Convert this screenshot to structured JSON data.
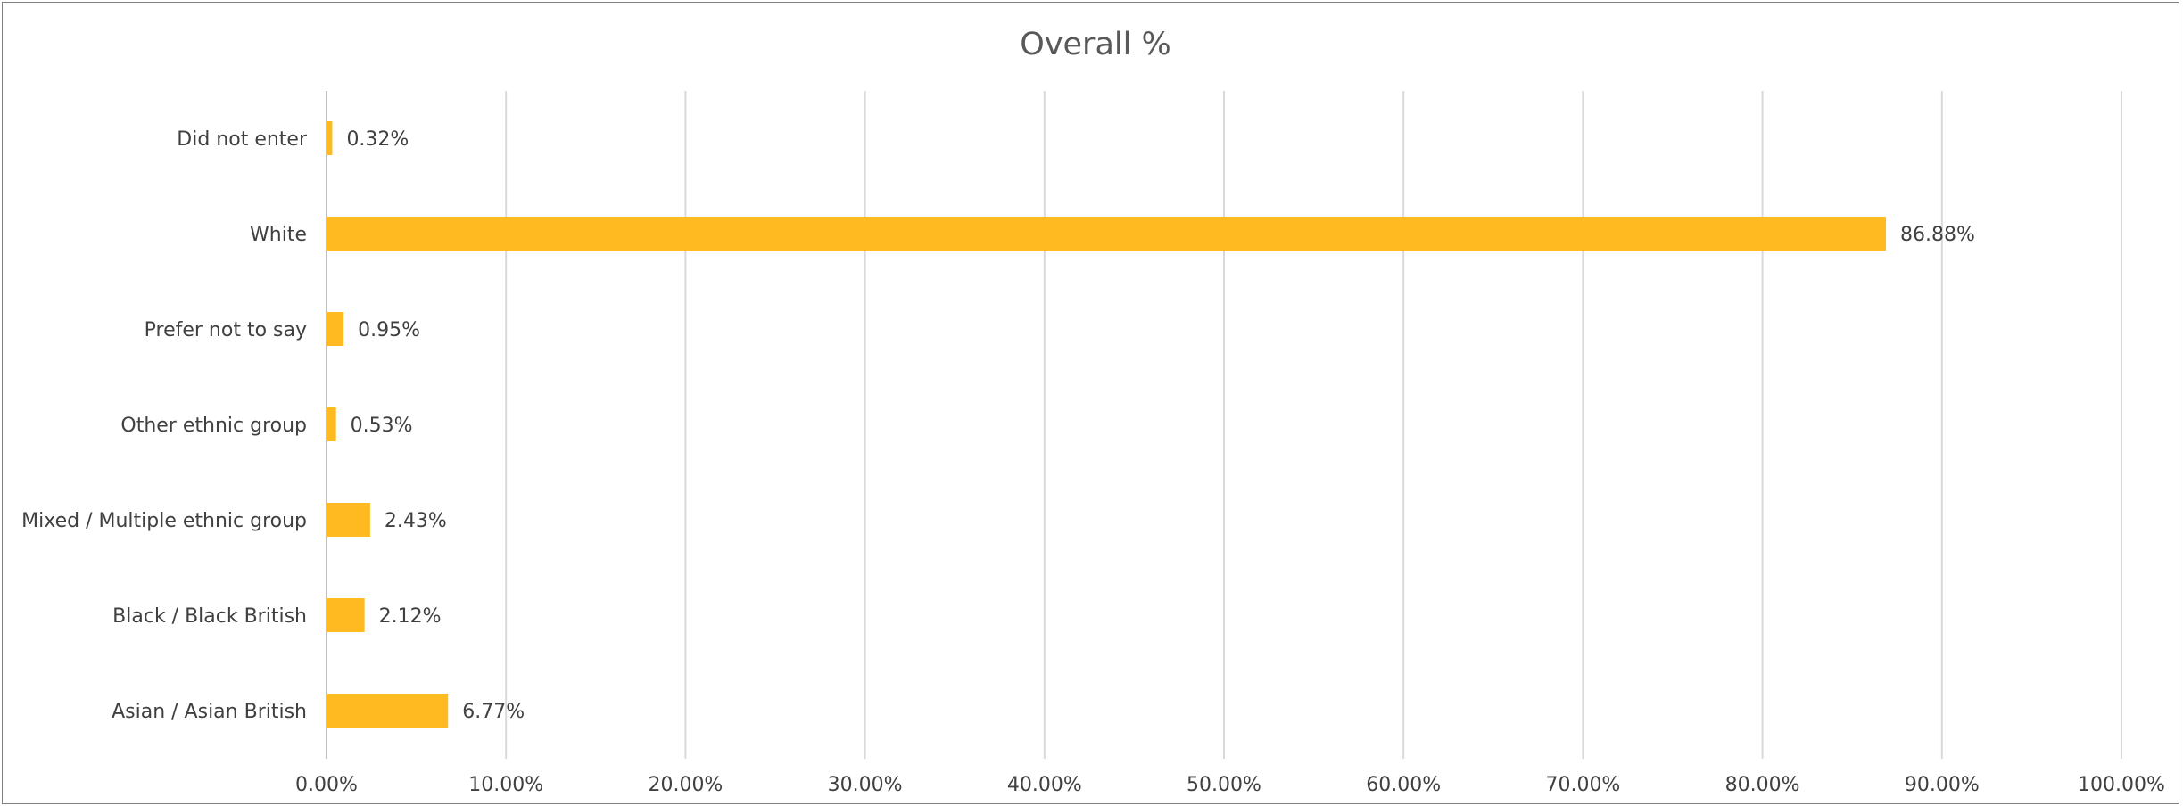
{
  "chart_data": {
    "type": "bar",
    "orientation": "horizontal",
    "title": "Overall %",
    "xlabel": "",
    "ylabel": "",
    "categories": [
      "Did not enter",
      "White",
      "Prefer not to say",
      "Other ethnic group",
      "Mixed / Multiple ethnic group",
      "Black / Black British",
      "Asian / Asian British"
    ],
    "values": [
      0.32,
      86.88,
      0.95,
      0.53,
      2.43,
      2.12,
      6.77
    ],
    "value_labels": [
      "0.32%",
      "86.88%",
      "0.95%",
      "0.53%",
      "2.43%",
      "2.12%",
      "6.77%"
    ],
    "xlim": [
      0,
      100
    ],
    "x_ticks": [
      0,
      10,
      20,
      30,
      40,
      50,
      60,
      70,
      80,
      90,
      100
    ],
    "x_tick_labels": [
      "0.00%",
      "10.00%",
      "20.00%",
      "30.00%",
      "40.00%",
      "50.00%",
      "60.00%",
      "70.00%",
      "80.00%",
      "90.00%",
      "100.00%"
    ],
    "grid": true,
    "legend": "none",
    "bar_color": "#FFBA22"
  }
}
